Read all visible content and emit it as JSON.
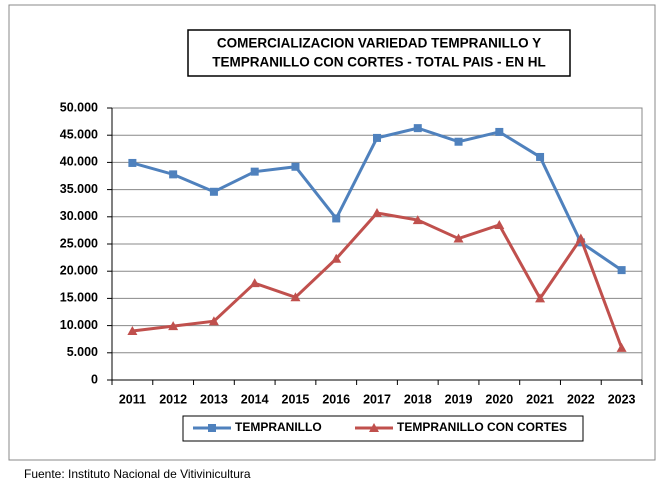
{
  "chart_data": {
    "type": "line",
    "title": [
      "COMERCIALIZACION VARIEDAD TEMPRANILLO  Y",
      "TEMPRANILLO CON CORTES - TOTAL PAIS - EN HL"
    ],
    "categories": [
      "2011",
      "2012",
      "2013",
      "2014",
      "2015",
      "2016",
      "2017",
      "2018",
      "2019",
      "2020",
      "2021",
      "2022",
      "2023"
    ],
    "series": [
      {
        "name": "TEMPRANILLO",
        "color": "#4f81bd",
        "marker": "square",
        "values": [
          39900,
          37800,
          34600,
          38300,
          39200,
          29700,
          44500,
          46300,
          43800,
          45600,
          41000,
          25300,
          20200
        ]
      },
      {
        "name": "TEMPRANILLO CON CORTES",
        "color": "#c0504d",
        "marker": "triangle",
        "values": [
          9000,
          9900,
          10800,
          17800,
          15200,
          22300,
          30700,
          29400,
          26000,
          28500,
          15000,
          26000,
          5900
        ]
      }
    ],
    "ylim": [
      0,
      50000
    ],
    "yticks": [
      0,
      {
        "value": 5000,
        "label": "5.000"
      },
      {
        "value": 10000,
        "label": "10.000"
      },
      {
        "value": 15000,
        "label": "15.000"
      },
      {
        "value": 20000,
        "label": "20.000"
      },
      {
        "value": 25000,
        "label": "25.000"
      },
      {
        "value": 30000,
        "label": "30.000"
      },
      {
        "value": 35000,
        "label": "35.000"
      },
      {
        "value": 40000,
        "label": "40.000"
      },
      {
        "value": 45000,
        "label": "45.000"
      },
      {
        "value": 50000,
        "label": "50.000"
      }
    ],
    "grid": true,
    "legend": "bottom",
    "source": "Fuente: Instituto Nacional de Vitivinicultura"
  }
}
